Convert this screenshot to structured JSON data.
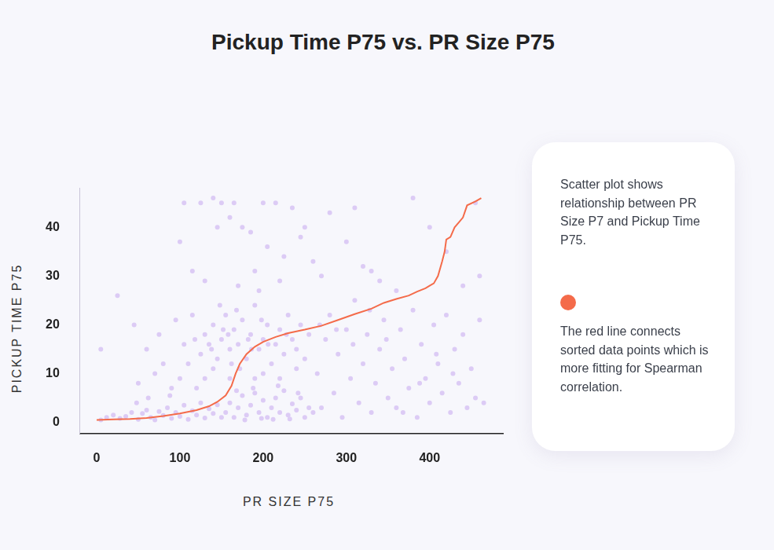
{
  "chart_data": {
    "type": "scatter",
    "title": "Pickup Time P75 vs. PR Size P75",
    "x_label": "PR SIZE P75",
    "y_label": "PICKUP TIME P75",
    "annotations": [
      "Scatter plot shows relationship between PR Size P7 and Pickup Time P75.",
      "The red line connects sorted data points which is more fitting for Spearman correlation."
    ],
    "xlim": [
      -20,
      488
    ],
    "ylim": [
      -2.3,
      48
    ],
    "xticks": [
      0,
      100,
      200,
      300,
      400
    ],
    "yticks": [
      0,
      10,
      20,
      30,
      40
    ],
    "grid": false,
    "series": [
      {
        "type": "scatter",
        "color": "#dccbf5",
        "marker": "circle",
        "x": [
          5,
          12,
          20,
          28,
          35,
          42,
          50,
          55,
          60,
          65,
          70,
          75,
          80,
          85,
          90,
          95,
          100,
          105,
          110,
          115,
          120,
          125,
          130,
          135,
          140,
          145,
          150,
          48,
          62,
          88,
          155,
          160,
          165,
          170,
          175,
          180,
          185,
          190,
          195,
          200,
          205,
          210,
          215,
          220,
          225,
          230,
          235,
          240,
          245,
          250,
          255,
          260,
          178,
          198,
          212,
          232,
          188,
          218,
          168,
          242,
          125,
          130,
          135,
          140,
          145,
          150,
          155,
          160,
          165,
          170,
          175,
          180,
          185,
          190,
          195,
          200,
          205,
          210,
          215,
          220,
          225,
          230,
          235,
          240,
          245,
          250,
          255,
          148,
          172,
          162,
          138,
          152,
          168,
          182,
          198,
          228,
          158,
          186,
          206,
          118,
          50,
          70,
          90,
          110,
          130,
          60,
          80,
          100,
          120,
          140,
          160,
          200,
          220,
          240,
          45,
          75,
          95,
          105,
          115,
          190,
          265,
          270,
          275,
          280,
          285,
          290,
          295,
          300,
          305,
          310,
          315,
          320,
          325,
          330,
          335,
          340,
          345,
          350,
          355,
          360,
          365,
          370,
          375,
          380,
          385,
          390,
          395,
          400,
          405,
          410,
          415,
          420,
          425,
          430,
          435,
          440,
          445,
          450,
          455,
          460,
          465,
          268,
          288,
          308,
          328,
          348,
          368,
          388,
          408,
          428,
          25,
          105,
          125,
          140,
          150,
          165,
          175,
          200,
          215,
          235,
          145,
          160,
          185,
          205,
          225,
          100,
          115,
          130,
          170,
          195,
          245,
          260,
          280,
          300,
          320,
          340,
          360,
          380,
          400,
          420,
          440,
          455,
          330,
          270,
          5,
          250,
          310,
          460,
          190,
          220
        ],
        "values": [
          0.5,
          1,
          1.5,
          0.8,
          1.2,
          2,
          0.6,
          1.8,
          2.5,
          1,
          0.5,
          2.2,
          1.4,
          3,
          0.8,
          2,
          1.2,
          3.5,
          0.6,
          2.4,
          1.5,
          4,
          0.9,
          2.8,
          1.8,
          3.6,
          1,
          4,
          5,
          5.5,
          2,
          4,
          1,
          3,
          5.5,
          1.5,
          3.5,
          6,
          2,
          4.5,
          1,
          3,
          5,
          2,
          6.5,
          1.5,
          3.8,
          2.5,
          5,
          1,
          3,
          2,
          0.5,
          0.8,
          0.6,
          0.7,
          7,
          7.5,
          6.5,
          6,
          14,
          18,
          16,
          20,
          13,
          17,
          22,
          15,
          19,
          16,
          21,
          13,
          18,
          24,
          15,
          17,
          20,
          12,
          16,
          19,
          14,
          22,
          17,
          15,
          20,
          13,
          18,
          24,
          11,
          12,
          15,
          19,
          23,
          17,
          21,
          18,
          18,
          15,
          16,
          17,
          8,
          10,
          7,
          12,
          9,
          15,
          12,
          9,
          7,
          11,
          9,
          10,
          9,
          11,
          20,
          18,
          21,
          16,
          22,
          9,
          10,
          3,
          17,
          22,
          6,
          14,
          1,
          19,
          9,
          25,
          4,
          12,
          18,
          2,
          8,
          15,
          21,
          5,
          11,
          3,
          19,
          13,
          7,
          23,
          1,
          16,
          9,
          4,
          20,
          12,
          6,
          22,
          2,
          15,
          8,
          18,
          3,
          11,
          5,
          21,
          4,
          20,
          19,
          16,
          23,
          17,
          2,
          8,
          14,
          10,
          26,
          45,
          45,
          46,
          45,
          45,
          40,
          45,
          45,
          44,
          40,
          42,
          39,
          36,
          34,
          37,
          31,
          29,
          28,
          27,
          38,
          33,
          43,
          37,
          32,
          29,
          27,
          46,
          40,
          35,
          28,
          45,
          31,
          30,
          15,
          40,
          44,
          30,
          31,
          29
        ]
      },
      {
        "type": "line",
        "color": "#f46b4a",
        "line_style": "solid",
        "x": [
          0,
          20,
          40,
          60,
          80,
          100,
          120,
          135,
          145,
          155,
          162,
          167,
          172,
          180,
          190,
          200,
          215,
          230,
          250,
          270,
          290,
          310,
          330,
          345,
          360,
          375,
          385,
          395,
          400,
          405,
          410,
          415,
          418,
          420,
          425,
          430,
          435,
          440,
          445,
          455,
          462
        ],
        "values": [
          0.5,
          0.6,
          0.7,
          0.9,
          1.3,
          1.8,
          2.5,
          3.3,
          4.2,
          5.5,
          7.5,
          10,
          12,
          14,
          15.5,
          16.5,
          17.5,
          18.3,
          19,
          19.8,
          21,
          22.2,
          23.3,
          24.5,
          25.3,
          26,
          26.8,
          27.5,
          28,
          28.5,
          30,
          33,
          35,
          37.5,
          38,
          40,
          41,
          42,
          44.5,
          45.3,
          46
        ]
      }
    ]
  }
}
